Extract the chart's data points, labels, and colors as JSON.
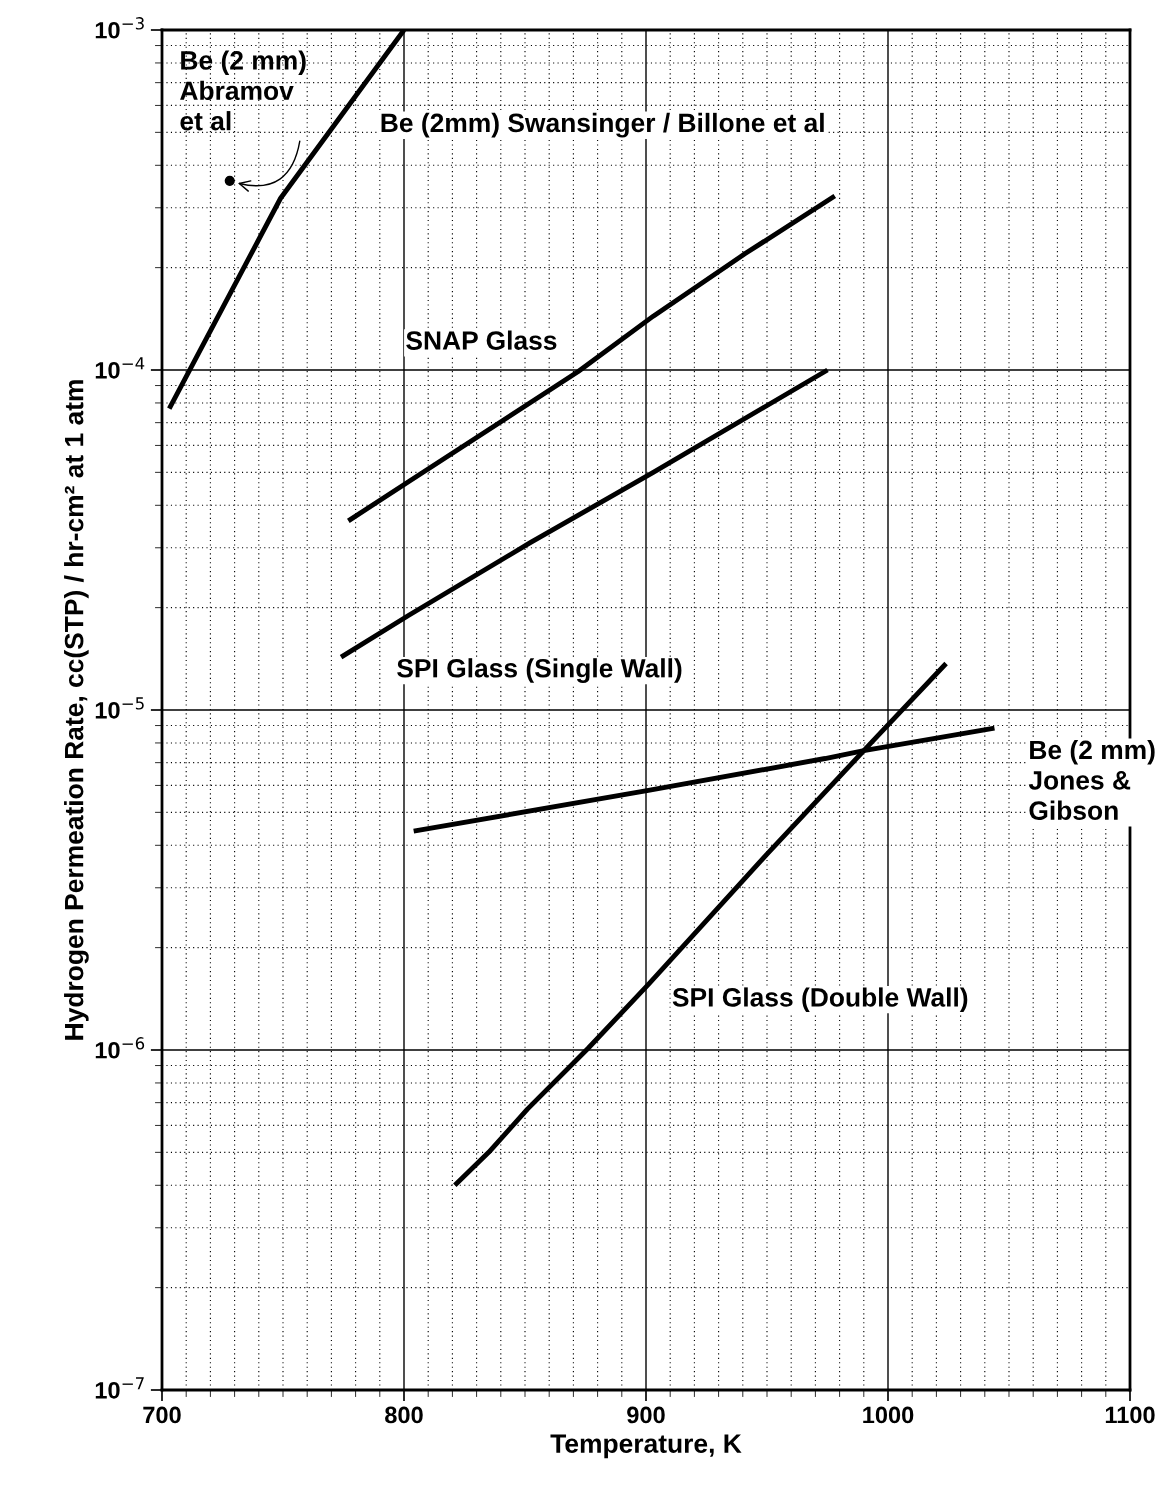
{
  "chart_data": {
    "type": "line",
    "xlabel": "Temperature, K",
    "ylabel": "Hydrogen Permeation Rate, cc(STP) / hr-cm² at 1 atm",
    "log": "y",
    "grid": true,
    "legend": false,
    "xlim": [
      700,
      1100
    ],
    "xticks": [
      700,
      800,
      900,
      1000,
      1100
    ],
    "ylim": [
      1e-07,
      0.001
    ],
    "yticks": [
      {
        "value": 1e-07,
        "label": "10$^{−7}$"
      },
      {
        "value": 1e-06,
        "label": "10$^{−6}$"
      },
      {
        "value": 1e-05,
        "label": "10$^{−5}$"
      },
      {
        "value": 0.0001,
        "label": "10$^{−4}$"
      },
      {
        "value": 0.001,
        "label": "10$^{−3}$"
      }
    ],
    "series": [
      {
        "name": "Be (2mm) Swansinger / Billone et al",
        "color": "#000000",
        "x": [
          703,
          749,
          800
        ],
        "values": [
          7.7e-05,
          0.00032,
          0.001
        ]
      },
      {
        "name": "Be (2 mm)\nAbramov\net al",
        "type": "scatter",
        "marker": "circle",
        "color": "#000000",
        "x": [
          728
        ],
        "values": [
          0.00036
        ]
      },
      {
        "name": "SNAP Glass",
        "color": "#000000",
        "x": [
          777,
          802,
          872,
          903,
          941,
          978
        ],
        "values": [
          3.6e-05,
          4.7e-05,
          9.9e-05,
          0.000144,
          0.00022,
          0.000325
        ]
      },
      {
        "name": "SPI Glass (Single Wall)",
        "color": "#000000",
        "x": [
          774,
          802,
          852,
          903,
          975
        ],
        "values": [
          1.43e-05,
          1.9e-05,
          3.1e-05,
          5e-05,
          0.0001
        ]
      },
      {
        "name": "Be (2 mm)\nJones &\nGibson",
        "color": "#000000",
        "x": [
          804,
          901,
          974,
          990,
          1044
        ],
        "values": [
          4.4e-06,
          5.8e-06,
          7.2e-06,
          7.6e-06,
          8.85e-06
        ]
      },
      {
        "name": "SPI Glass (Double Wall)",
        "color": "#000000",
        "x": [
          821,
          835,
          851,
          876,
          901,
          950,
          993,
          1024
        ],
        "values": [
          4e-07,
          5e-07,
          6.7e-07,
          1.01e-06,
          1.56e-06,
          3.77e-06,
          8e-06,
          1.37e-05
        ]
      }
    ]
  }
}
